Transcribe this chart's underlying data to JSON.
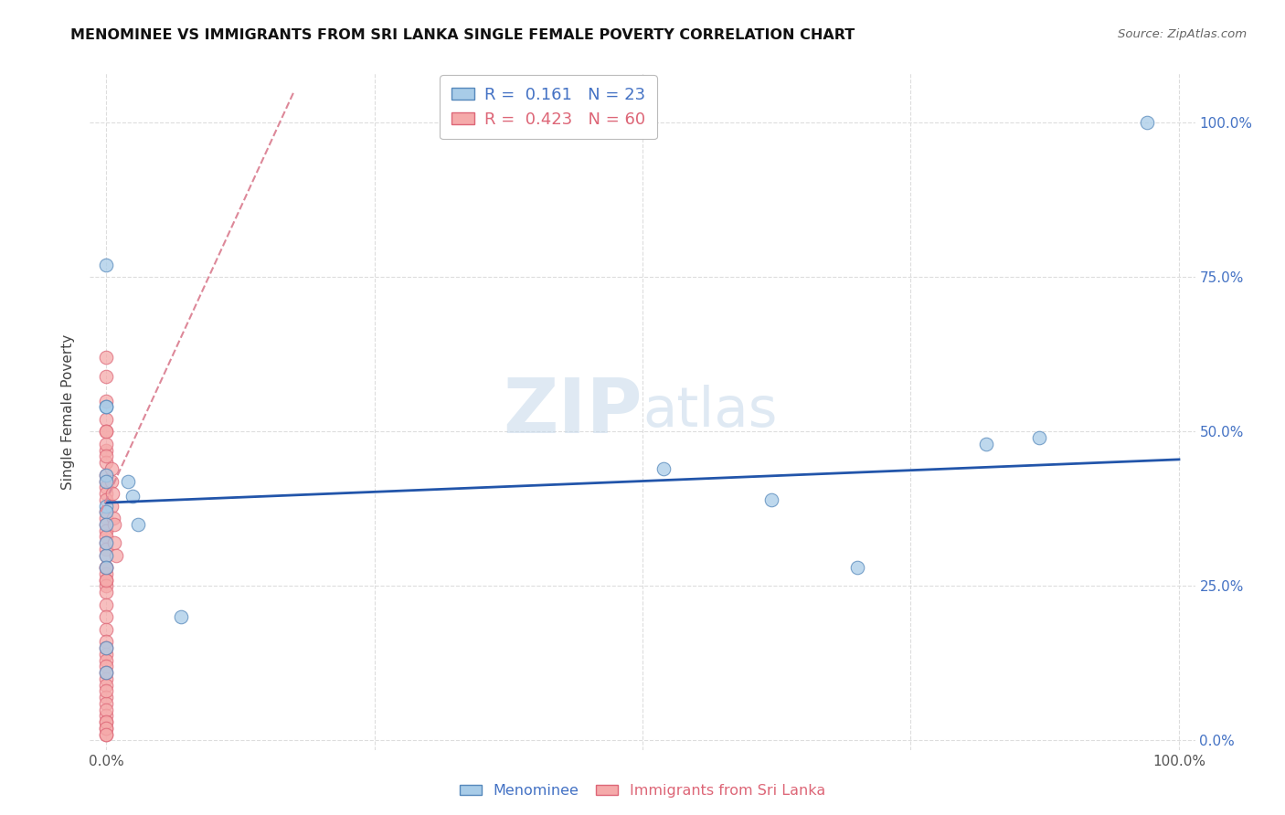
{
  "title": "MENOMINEE VS IMMIGRANTS FROM SRI LANKA SINGLE FEMALE POVERTY CORRELATION CHART",
  "source": "Source: ZipAtlas.com",
  "ylabel": "Single Female Poverty",
  "legend1_label": "Menominee",
  "legend2_label": "Immigrants from Sri Lanka",
  "r1": 0.161,
  "n1": 23,
  "r2": 0.423,
  "n2": 60,
  "color1_face": "#a8cce8",
  "color1_edge": "#5588bb",
  "color2_face": "#f5aaaa",
  "color2_edge": "#dd6677",
  "trend1_color": "#2255aa",
  "trend2_color": "#dd8899",
  "grid_color": "#dddddd",
  "watermark_color": "#c5d8ea",
  "right_tick_color": "#4472c4",
  "menominee_x": [
    0.0,
    0.0,
    0.0,
    0.0,
    0.0,
    0.0,
    0.0,
    0.0,
    0.02,
    0.025,
    0.03,
    0.07,
    0.52,
    0.62,
    0.7,
    0.82,
    0.87,
    0.97,
    0.0,
    0.0,
    0.0,
    0.0,
    0.0
  ],
  "menominee_y": [
    0.77,
    0.54,
    0.54,
    0.43,
    0.42,
    0.38,
    0.3,
    0.11,
    0.42,
    0.395,
    0.35,
    0.2,
    0.44,
    0.39,
    0.28,
    0.48,
    0.49,
    1.0,
    0.37,
    0.35,
    0.32,
    0.28,
    0.15
  ],
  "srilanka_x": [
    0.0,
    0.0,
    0.0,
    0.0,
    0.0,
    0.0,
    0.0,
    0.0,
    0.0,
    0.0,
    0.0,
    0.0,
    0.0,
    0.0,
    0.0,
    0.0,
    0.0,
    0.0,
    0.0,
    0.0,
    0.0,
    0.0,
    0.0,
    0.0,
    0.0,
    0.0,
    0.0,
    0.0,
    0.0,
    0.0,
    0.0,
    0.0,
    0.0,
    0.0,
    0.0,
    0.0,
    0.0,
    0.0,
    0.0,
    0.0,
    0.005,
    0.005,
    0.005,
    0.006,
    0.007,
    0.008,
    0.008,
    0.009,
    0.0,
    0.0,
    0.0,
    0.0,
    0.0,
    0.0,
    0.0,
    0.0,
    0.0,
    0.0,
    0.0,
    0.0
  ],
  "srilanka_y": [
    0.62,
    0.59,
    0.55,
    0.52,
    0.5,
    0.47,
    0.45,
    0.43,
    0.42,
    0.41,
    0.4,
    0.39,
    0.37,
    0.36,
    0.35,
    0.34,
    0.33,
    0.32,
    0.31,
    0.3,
    0.28,
    0.27,
    0.26,
    0.25,
    0.24,
    0.22,
    0.2,
    0.18,
    0.16,
    0.14,
    0.13,
    0.12,
    0.1,
    0.09,
    0.07,
    0.06,
    0.04,
    0.03,
    0.02,
    0.01,
    0.44,
    0.42,
    0.38,
    0.4,
    0.36,
    0.35,
    0.32,
    0.3,
    0.08,
    0.05,
    0.03,
    0.02,
    0.01,
    0.48,
    0.46,
    0.28,
    0.26,
    0.15,
    0.11,
    0.5
  ],
  "blue_trend_x0": 0.0,
  "blue_trend_y0": 0.385,
  "blue_trend_x1": 1.0,
  "blue_trend_y1": 0.455,
  "pink_trend_x0": -0.005,
  "pink_trend_y0": 0.37,
  "pink_trend_x1": 0.175,
  "pink_trend_y1": 1.05,
  "xlim": [
    -0.015,
    1.015
  ],
  "ylim": [
    -0.015,
    1.08
  ]
}
